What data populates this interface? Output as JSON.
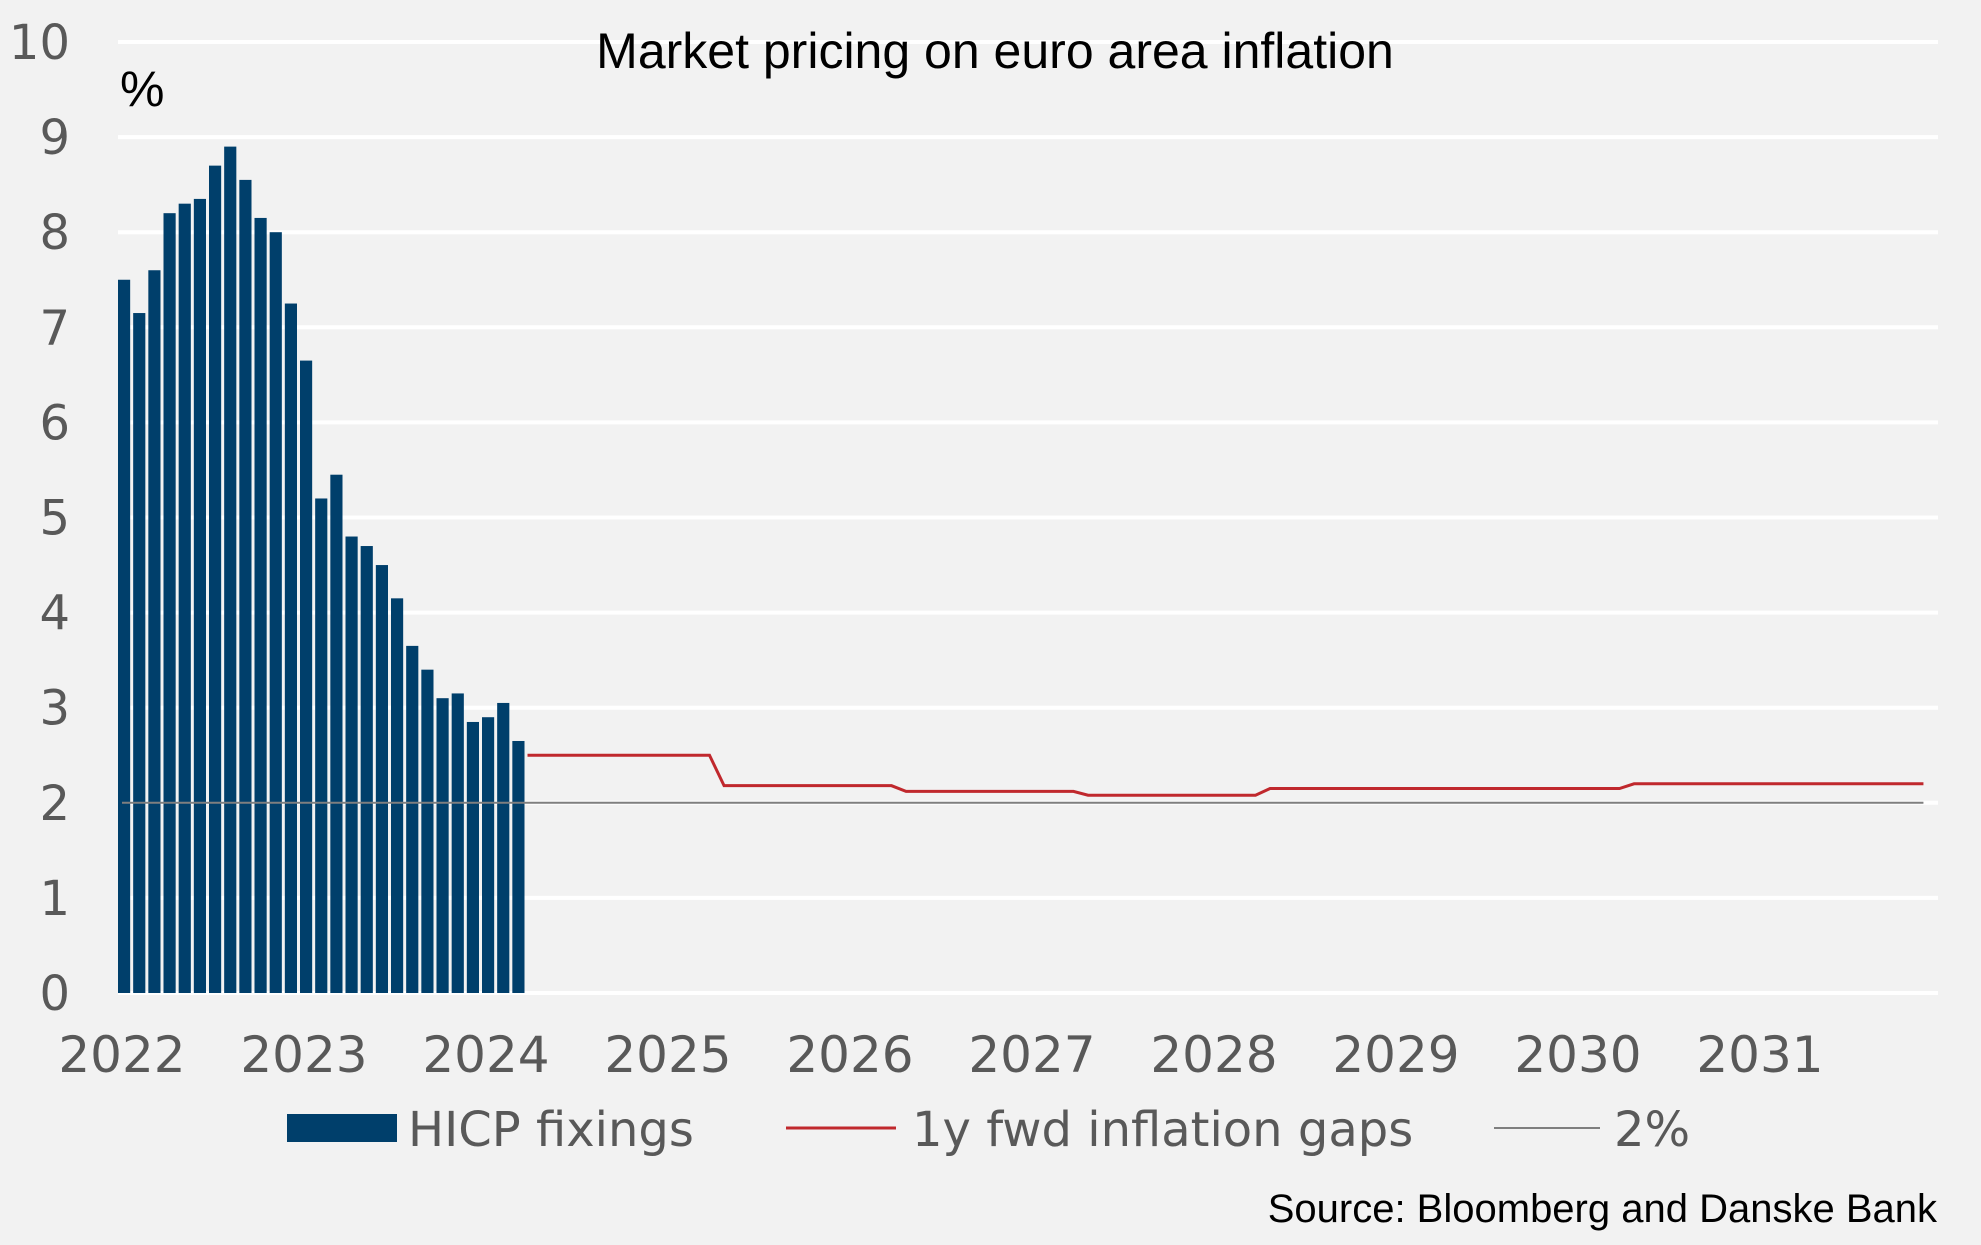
{
  "chart_data": {
    "type": "bar",
    "title": "Market pricing on euro area  inflation",
    "ylabel": "%",
    "ylim": [
      0,
      10
    ],
    "yticks": [
      "0",
      "1",
      "2",
      "3",
      "4",
      "5",
      "6",
      "7",
      "8",
      "9",
      "10"
    ],
    "xlim": [
      2022,
      2032
    ],
    "xticks": [
      "2022",
      "2023",
      "2024",
      "2025",
      "2026",
      "2027",
      "2028",
      "2029",
      "2030",
      "2031"
    ],
    "grid": true,
    "legend_position": "bottom",
    "series": [
      {
        "name": "HICP fixings",
        "type": "bar",
        "color": "#003f6b",
        "start": "2022-01",
        "frequency": "monthly",
        "values": [
          7.5,
          7.15,
          7.6,
          8.2,
          8.3,
          8.35,
          8.7,
          8.9,
          8.55,
          8.15,
          8.0,
          7.25,
          6.65,
          5.2,
          5.45,
          4.8,
          4.7,
          4.5,
          4.15,
          3.65,
          3.4,
          3.1,
          3.15,
          2.85,
          2.9,
          3.05,
          2.65
        ]
      },
      {
        "name": "1y fwd inflation gaps",
        "type": "step-line",
        "color": "#c0282d",
        "x": [
          2024.25,
          2025.25,
          2026.25,
          2027.25,
          2028.25,
          2029.25,
          2030.25,
          2031.25
        ],
        "values": [
          2.5,
          2.18,
          2.12,
          2.08,
          2.15,
          2.15,
          2.2,
          2.2
        ],
        "end_x": 2031.92
      },
      {
        "name": "2%",
        "type": "hline",
        "color": "#7f7f7f",
        "value": 2
      }
    ],
    "source": "Source: Bloomberg and Danske Bank"
  }
}
